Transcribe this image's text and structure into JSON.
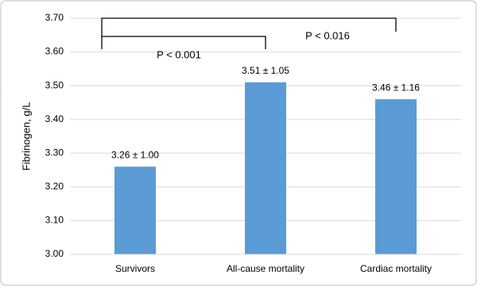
{
  "chart_data": {
    "type": "bar",
    "y_label": "Fibrinogen, g/L",
    "categories": [
      "Survivors",
      "All-cause mortality",
      "Cardiac mortality"
    ],
    "values": [
      3.26,
      3.51,
      3.46
    ],
    "value_labels": [
      "3.26 ± 1.00",
      "3.51 ± 1.05",
      "3.46 ± 1.16"
    ],
    "color": "#5b9bd5",
    "ylim": [
      3.0,
      3.7
    ],
    "yticks": [
      {
        "value": 3.0,
        "label": "3.00"
      },
      {
        "value": 3.1,
        "label": "3.10"
      },
      {
        "value": 3.2,
        "label": "3.20"
      },
      {
        "value": 3.3,
        "label": "3.30"
      },
      {
        "value": 3.4,
        "label": "3.40"
      },
      {
        "value": 3.5,
        "label": "3.50"
      },
      {
        "value": 3.6,
        "label": "3.60"
      },
      {
        "value": 3.7,
        "label": "3.70"
      }
    ],
    "grid": true,
    "annotations": [
      "P < 0.001",
      "P < 0.016"
    ]
  }
}
